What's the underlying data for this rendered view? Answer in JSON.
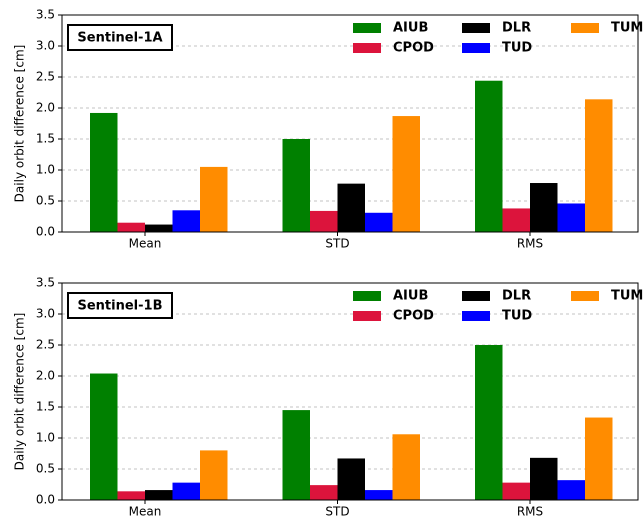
{
  "chart_data": [
    {
      "type": "bar",
      "annotation": "Sentinel-1A",
      "ylabel": "Daily orbit difference [cm]",
      "categories": [
        "Mean",
        "STD",
        "RMS"
      ],
      "series": [
        {
          "name": "AIUB",
          "color": "#008000",
          "values": [
            1.92,
            1.5,
            2.44
          ]
        },
        {
          "name": "CPOD",
          "color": "#dc143c",
          "values": [
            0.15,
            0.34,
            0.38
          ]
        },
        {
          "name": "DLR",
          "color": "#000000",
          "values": [
            0.12,
            0.78,
            0.79
          ]
        },
        {
          "name": "TUD",
          "color": "#0000ff",
          "values": [
            0.35,
            0.31,
            0.46
          ]
        },
        {
          "name": "TUM",
          "color": "#ff8c00",
          "values": [
            1.05,
            1.87,
            2.14
          ]
        }
      ],
      "ylim": [
        0,
        3.5
      ],
      "yticks": [
        {
          "value": 0,
          "label": "0.0"
        },
        {
          "value": 0.5,
          "label": "0.5"
        },
        {
          "value": 1,
          "label": "1.0"
        },
        {
          "value": 1.5,
          "label": "1.5"
        },
        {
          "value": 2,
          "label": "2.0"
        },
        {
          "value": 2.5,
          "label": "2.5"
        },
        {
          "value": 3,
          "label": "3.0"
        },
        {
          "value": 3.5,
          "label": "3.5"
        }
      ],
      "grid": true,
      "legend": "upper right"
    },
    {
      "type": "bar",
      "annotation": "Sentinel-1B",
      "ylabel": "Daily orbit difference [cm]",
      "categories": [
        "Mean",
        "STD",
        "RMS"
      ],
      "series": [
        {
          "name": "AIUB",
          "color": "#008000",
          "values": [
            2.04,
            1.45,
            2.5
          ]
        },
        {
          "name": "CPOD",
          "color": "#dc143c",
          "values": [
            0.14,
            0.24,
            0.28
          ]
        },
        {
          "name": "DLR",
          "color": "#000000",
          "values": [
            0.16,
            0.67,
            0.68
          ]
        },
        {
          "name": "TUD",
          "color": "#0000ff",
          "values": [
            0.28,
            0.16,
            0.32
          ]
        },
        {
          "name": "TUM",
          "color": "#ff8c00",
          "values": [
            0.8,
            1.06,
            1.33
          ]
        }
      ],
      "ylim": [
        0,
        3.5
      ],
      "yticks": [
        {
          "value": 0,
          "label": "0.0"
        },
        {
          "value": 0.5,
          "label": "0.5"
        },
        {
          "value": 1,
          "label": "1.0"
        },
        {
          "value": 1.5,
          "label": "1.5"
        },
        {
          "value": 2,
          "label": "2.0"
        },
        {
          "value": 2.5,
          "label": "2.5"
        },
        {
          "value": 3,
          "label": "3.0"
        },
        {
          "value": 3.5,
          "label": "3.5"
        }
      ],
      "grid": true,
      "legend": "upper right"
    }
  ]
}
